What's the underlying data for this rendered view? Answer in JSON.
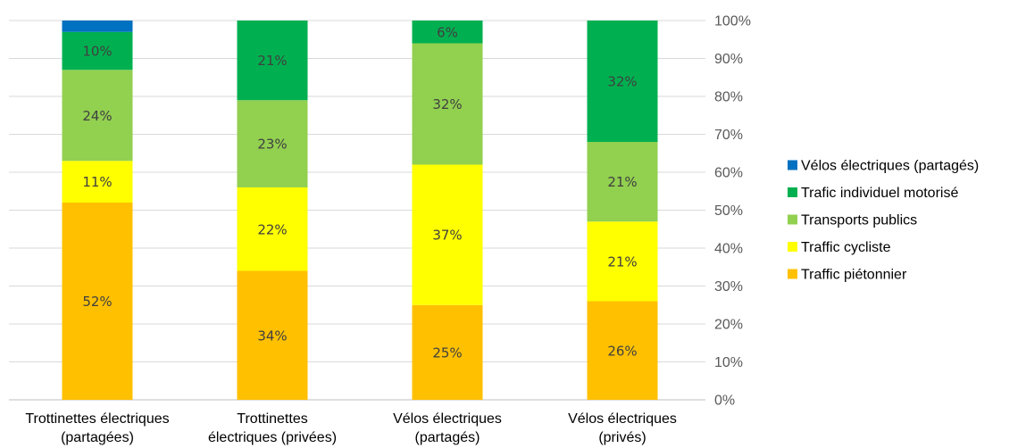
{
  "chart_data": {
    "type": "bar",
    "stacked": true,
    "title": "",
    "xlabel": "",
    "ylabel": "",
    "ylim": [
      0,
      100
    ],
    "y_ticks": [
      "0%",
      "10%",
      "20%",
      "30%",
      "40%",
      "50%",
      "60%",
      "70%",
      "80%",
      "90%",
      "100%"
    ],
    "y_axis_side": "right",
    "grid": true,
    "legend_position": "right",
    "categories": [
      [
        "Trottinettes électriques",
        "(partagées)"
      ],
      [
        "Trottinettes",
        "électriques (privées)"
      ],
      [
        "Vélos électriques",
        "(partagés)"
      ],
      [
        "Vélos électriques",
        "(privés)"
      ]
    ],
    "series": [
      {
        "name": "Traffic piétonnier",
        "color": "#FFC000",
        "values": [
          52,
          34,
          25,
          26
        ],
        "labels": [
          "52%",
          "34%",
          "25%",
          "26%"
        ]
      },
      {
        "name": "Traffic cycliste",
        "color": "#FFFF00",
        "values": [
          11,
          22,
          37,
          21
        ],
        "labels": [
          "11%",
          "22%",
          "37%",
          "21%"
        ]
      },
      {
        "name": "Transports publics",
        "color": "#92D050",
        "values": [
          24,
          23,
          32,
          21
        ],
        "labels": [
          "24%",
          "23%",
          "32%",
          "21%"
        ]
      },
      {
        "name": "Trafic individuel motorisé",
        "color": "#00B050",
        "values": [
          10,
          21,
          6,
          32
        ],
        "labels": [
          "10%",
          "21%",
          "6%",
          "32%"
        ]
      },
      {
        "name": "Vélos électriques (partagés)",
        "color": "#0070C0",
        "values": [
          3,
          0,
          0,
          0
        ],
        "labels": [
          "",
          "",
          "",
          ""
        ]
      }
    ],
    "legend_order": [
      "Vélos électriques (partagés)",
      "Trafic individuel motorisé",
      "Transports publics",
      "Traffic cycliste",
      "Traffic piétonnier"
    ]
  }
}
